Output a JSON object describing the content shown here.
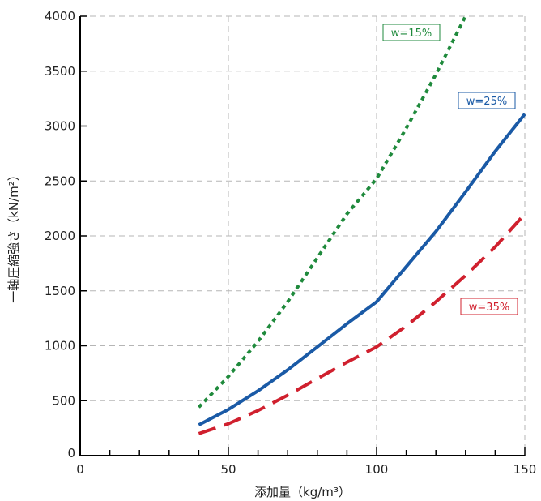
{
  "chart_data": {
    "type": "line",
    "xlabel": "添加量（kg/m³）",
    "ylabel": "一軸圧縮強さ（kN/m²）",
    "xlim": [
      0,
      150
    ],
    "ylim": [
      0,
      4000
    ],
    "xticks": [
      0,
      50,
      100,
      150
    ],
    "xtick_labels": [
      "0",
      "50",
      "100",
      "150"
    ],
    "yticks": [
      0,
      500,
      1000,
      1500,
      2000,
      2500,
      3000,
      3500,
      4000
    ],
    "ytick_labels": [
      "0",
      "500",
      "1000",
      "1500",
      "2000",
      "2500",
      "3000",
      "3500",
      "4000"
    ],
    "minor_xticks": [
      10,
      20,
      30,
      40,
      60,
      70,
      80,
      90,
      110,
      120,
      130,
      140
    ],
    "grid": true,
    "series": [
      {
        "name": "w=15%",
        "color": "#1f8a3c",
        "style": "dotted",
        "x": [
          40,
          50,
          60,
          70,
          80,
          90,
          100,
          110,
          120,
          130
        ],
        "y": [
          440,
          720,
          1040,
          1400,
          1800,
          2200,
          2520,
          2980,
          3470,
          4000
        ]
      },
      {
        "name": "w=25%",
        "color": "#1a5aa6",
        "style": "solid",
        "x": [
          40,
          50,
          60,
          70,
          80,
          90,
          100,
          110,
          120,
          130,
          140,
          150
        ],
        "y": [
          280,
          420,
          590,
          780,
          990,
          1200,
          1400,
          1720,
          2040,
          2400,
          2770,
          3110
        ]
      },
      {
        "name": "w=35%",
        "color": "#d0202e",
        "style": "dashed",
        "x": [
          40,
          50,
          60,
          70,
          80,
          90,
          100,
          110,
          120,
          130,
          140,
          150
        ],
        "y": [
          200,
          290,
          410,
          550,
          700,
          850,
          990,
          1180,
          1400,
          1640,
          1900,
          2200
        ]
      }
    ]
  }
}
